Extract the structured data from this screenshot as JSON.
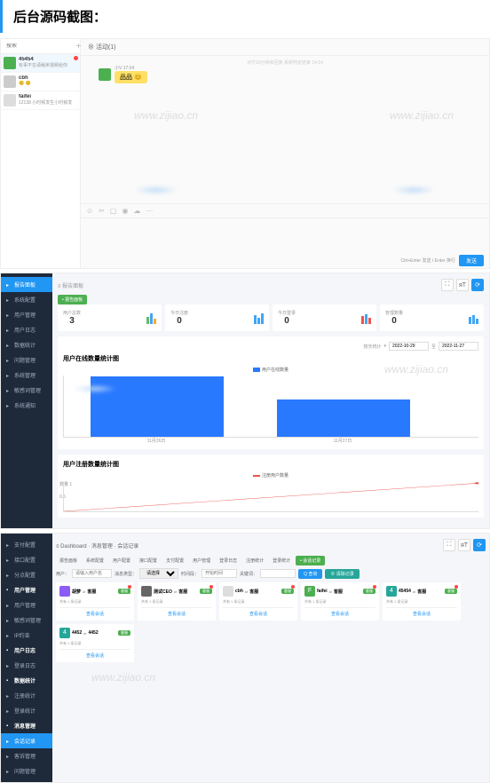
{
  "page_title": "后台源码截图：",
  "watermark_text": "www.zijiao.cn",
  "chat": {
    "search_placeholder": "搜索",
    "header_title": "活动(1)",
    "header_tag": "小V",
    "contacts": [
      {
        "name": "45454",
        "msg": "有事不在请稍米视频给你",
        "avatar": "#4caf50",
        "badge": true,
        "active": true
      },
      {
        "name": "cbh",
        "msg": "😊 😊",
        "avatar": "#ccc",
        "badge": false
      },
      {
        "name": "faifei",
        "msg": "12138 小时候发生小时候发",
        "avatar": "#ddd",
        "badge": false
      }
    ],
    "msg_author": "小V",
    "msg_time": "17:04",
    "msg_content": "品品 😊",
    "toolbar_icons": [
      "☺",
      "✂",
      "▢",
      "◉",
      "☁",
      "⋯"
    ],
    "footer_text": "Ctrl+Enter 发送  /  Enter 换行",
    "send_btn": "发送"
  },
  "dash": {
    "nav": [
      {
        "label": "报告面板",
        "active": true
      },
      {
        "label": "系统配置"
      },
      {
        "label": "用户管理"
      },
      {
        "label": "用户日志"
      },
      {
        "label": "数据统计"
      },
      {
        "label": "问题管理"
      },
      {
        "label": "系统管理"
      },
      {
        "label": "敏感词管理"
      },
      {
        "label": "系统通知"
      }
    ],
    "breadcrumb": "报告面板",
    "tag_btn": "• 报告面板",
    "stats": [
      {
        "label": "用户总数",
        "value": "3",
        "colors": [
          "#66bb6a",
          "#42a5f5",
          "#ffa726"
        ],
        "heights": [
          8,
          12,
          6
        ]
      },
      {
        "label": "今日注册",
        "value": "0",
        "colors": [
          "#42a5f5",
          "#42a5f5",
          "#42a5f5"
        ],
        "heights": [
          10,
          7,
          12
        ]
      },
      {
        "label": "今日登录",
        "value": "0",
        "colors": [
          "#ef5350",
          "#42a5f5",
          "#ef5350"
        ],
        "heights": [
          9,
          11,
          7
        ]
      },
      {
        "label": "管理数量",
        "value": "0",
        "colors": [
          "#42a5f5",
          "#42a5f5",
          "#42a5f5"
        ],
        "heights": [
          8,
          10,
          6
        ]
      }
    ],
    "filter_label": "按天统计",
    "date_from": "2022-10-29",
    "date_to": "2022-11-27",
    "chart1": {
      "title": "用户在线数量统计图",
      "legend": "用户在线数量",
      "legend_color": "#2979ff",
      "bars": [
        {
          "label": "11月26日",
          "h": 68
        },
        {
          "label": "11月27日",
          "h": 42
        }
      ],
      "bg": "#ffffff"
    },
    "chart2": {
      "title": "用户注册数量统计图",
      "legend": "注册用户数量",
      "legend_color": "#ef5350",
      "y_max": 1,
      "y_step": 0.5,
      "line_color": "#ef5350",
      "points": [
        [
          0,
          0
        ],
        [
          100,
          28
        ]
      ]
    }
  },
  "conv": {
    "nav": [
      {
        "label": "支付配置"
      },
      {
        "label": "接口配置"
      },
      {
        "label": "分点配置"
      },
      {
        "label": "用户管理",
        "header": true
      },
      {
        "label": "用户管理"
      },
      {
        "label": "敏感词管理"
      },
      {
        "label": "IP约束"
      },
      {
        "label": "用户日志",
        "header": true
      },
      {
        "label": "登录日志"
      },
      {
        "label": "数据统计",
        "header": true
      },
      {
        "label": "注册统计"
      },
      {
        "label": "登录统计"
      },
      {
        "label": "消息管理",
        "header": true
      },
      {
        "label": "会话记录",
        "active": true
      },
      {
        "label": "客诉管理"
      },
      {
        "label": "问题管理"
      }
    ],
    "breadcrumb": "Dashboard · 消息管理 · 会话记录",
    "tabs": [
      "报告面板",
      "系统配置",
      "用户配置",
      "接口配置",
      "支付配置",
      "用户管理",
      "登录日志",
      "注册统计",
      "登录统计"
    ],
    "tab_active": "• 会话记录",
    "filter": {
      "user_label": "用户：",
      "user_placeholder": "请输入用户名",
      "type_label": "消息类型：",
      "type_value": "请选择",
      "time_label": "时间段：",
      "time_placeholder": "开始时间",
      "keyword_label": "关键词：",
      "search_btn": "Q 查询",
      "clear_btn": "⊘ 清除记录"
    },
    "cards": [
      {
        "avatar": "#8b5cf6",
        "name": "胡萝",
        "role": "⇄",
        "peer": "客服",
        "badge": "",
        "meta": "共有 1 条记录",
        "action": "查看会话",
        "dot": true
      },
      {
        "avatar": "#666",
        "name": "测试CEO",
        "role": "⇄",
        "peer": "客服",
        "badge": "",
        "meta": "共有 1 条记录",
        "action": "查看会话",
        "dot": true
      },
      {
        "avatar": "#ddd",
        "name": "cbh",
        "role": "⇄",
        "peer": "客服",
        "badge": "",
        "meta": "共有 1 条记录",
        "action": "查看会话",
        "dot": true
      },
      {
        "avatar": "F",
        "avatar_bg": "#4caf50",
        "name": "faifei",
        "role": "⇄",
        "peer": "客服",
        "badge": "",
        "meta": "共有 1 条记录",
        "action": "查看会话",
        "dot": true
      },
      {
        "avatar": "4",
        "avatar_bg": "#26a69a",
        "name": "45454",
        "role": "⇄",
        "peer": "客服",
        "badge": "",
        "meta": "共有 1 条记录",
        "action": "查看会话",
        "dot": true
      },
      {
        "avatar": "4",
        "avatar_bg": "#26a69a",
        "name": "4452",
        "role": "⇄",
        "peer": "4452",
        "badge": "",
        "meta": "共有 1 条记录",
        "action": "查看会话",
        "dot": false
      }
    ]
  }
}
